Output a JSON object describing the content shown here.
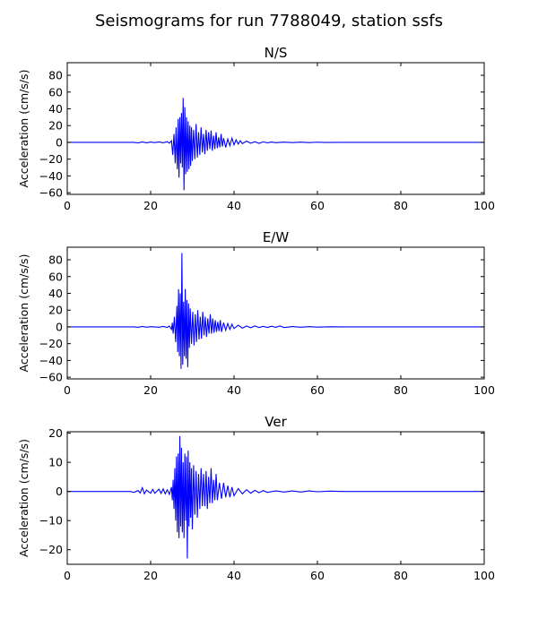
{
  "figure_title": "Seismograms for run 7788049, station ssfs",
  "chart_data": [
    {
      "type": "line",
      "title": "N/S",
      "xlabel": "",
      "ylabel": "Acceleration (cm/s/s)",
      "xlim": [
        0,
        100
      ],
      "ylim": [
        -62,
        95
      ],
      "xticks": [
        0,
        20,
        40,
        60,
        80,
        100
      ],
      "yticks": [
        -60,
        -40,
        -20,
        0,
        20,
        40,
        60,
        80
      ],
      "grid": false,
      "color": "#0000ff",
      "series": [
        {
          "values": [
            [
              0,
              0
            ],
            [
              16,
              0
            ],
            [
              17,
              -0.6
            ],
            [
              18,
              0.5
            ],
            [
              19,
              -0.5
            ],
            [
              20,
              0.4
            ],
            [
              21,
              -0.3
            ],
            [
              22,
              0.5
            ],
            [
              23,
              -0.5
            ],
            [
              24,
              0.8
            ],
            [
              24.5,
              -1
            ],
            [
              25,
              2
            ],
            [
              25.3,
              -15
            ],
            [
              25.6,
              10
            ],
            [
              25.9,
              -25
            ],
            [
              26.1,
              18
            ],
            [
              26.4,
              -32
            ],
            [
              26.6,
              28
            ],
            [
              26.8,
              -42
            ],
            [
              27,
              30
            ],
            [
              27.2,
              -25
            ],
            [
              27.4,
              35
            ],
            [
              27.6,
              -30
            ],
            [
              27.8,
              53
            ],
            [
              28,
              -57
            ],
            [
              28.2,
              42
            ],
            [
              28.4,
              -38
            ],
            [
              28.6,
              30
            ],
            [
              28.8,
              -35
            ],
            [
              29,
              25
            ],
            [
              29.2,
              -32
            ],
            [
              29.4,
              20
            ],
            [
              29.6,
              -28
            ],
            [
              29.8,
              18
            ],
            [
              30,
              -22
            ],
            [
              30.3,
              15
            ],
            [
              30.6,
              -20
            ],
            [
              30.9,
              22
            ],
            [
              31.2,
              -18
            ],
            [
              31.5,
              12
            ],
            [
              31.8,
              -15
            ],
            [
              32.1,
              18
            ],
            [
              32.4,
              -12
            ],
            [
              32.7,
              10
            ],
            [
              33,
              -14
            ],
            [
              33.3,
              15
            ],
            [
              33.6,
              -10
            ],
            [
              33.9,
              12
            ],
            [
              34.2,
              -8
            ],
            [
              34.5,
              14
            ],
            [
              34.8,
              -10
            ],
            [
              35.1,
              8
            ],
            [
              35.4,
              -8
            ],
            [
              35.7,
              12
            ],
            [
              36,
              -7
            ],
            [
              36.3,
              6
            ],
            [
              36.6,
              -6
            ],
            [
              36.9,
              10
            ],
            [
              37.2,
              -5
            ],
            [
              37.5,
              5
            ],
            [
              38,
              -6
            ],
            [
              38.5,
              4
            ],
            [
              39,
              -4
            ],
            [
              39.5,
              5
            ],
            [
              40,
              -3
            ],
            [
              40.5,
              3
            ],
            [
              41,
              -2
            ],
            [
              41.5,
              2
            ],
            [
              42,
              -1.5
            ],
            [
              43,
              1.5
            ],
            [
              44,
              -1
            ],
            [
              45,
              0.8
            ],
            [
              46,
              -1.2
            ],
            [
              47,
              0.6
            ],
            [
              48,
              -0.5
            ],
            [
              49,
              0.4
            ],
            [
              50,
              -0.4
            ],
            [
              52,
              0.3
            ],
            [
              54,
              -0.3
            ],
            [
              56,
              0.3
            ],
            [
              58,
              -0.2
            ],
            [
              60,
              0.2
            ],
            [
              62,
              -0.1
            ],
            [
              65,
              0
            ],
            [
              100,
              0
            ]
          ]
        }
      ]
    },
    {
      "type": "line",
      "title": "E/W",
      "xlabel": "",
      "ylabel": "Acceleration (cm/s/s)",
      "xlim": [
        0,
        100
      ],
      "ylim": [
        -62,
        95
      ],
      "xticks": [
        0,
        20,
        40,
        60,
        80,
        100
      ],
      "yticks": [
        -60,
        -40,
        -20,
        0,
        20,
        40,
        60,
        80
      ],
      "grid": false,
      "color": "#0000ff",
      "series": [
        {
          "values": [
            [
              0,
              0
            ],
            [
              16,
              0
            ],
            [
              17,
              -0.5
            ],
            [
              18,
              0.5
            ],
            [
              19,
              -0.4
            ],
            [
              20,
              0.3
            ],
            [
              22,
              -0.4
            ],
            [
              23,
              0.5
            ],
            [
              24,
              -0.6
            ],
            [
              24.5,
              1
            ],
            [
              25,
              -3
            ],
            [
              25.2,
              5
            ],
            [
              25.4,
              -8
            ],
            [
              25.7,
              12
            ],
            [
              26,
              -18
            ],
            [
              26.3,
              25
            ],
            [
              26.5,
              -30
            ],
            [
              26.7,
              45
            ],
            [
              26.9,
              -35
            ],
            [
              27.1,
              40
            ],
            [
              27.3,
              -50
            ],
            [
              27.5,
              88
            ],
            [
              27.7,
              -45
            ],
            [
              27.9,
              30
            ],
            [
              28.1,
              -35
            ],
            [
              28.3,
              45
            ],
            [
              28.5,
              -38
            ],
            [
              28.7,
              32
            ],
            [
              28.9,
              -48
            ],
            [
              29.1,
              28
            ],
            [
              29.3,
              -25
            ],
            [
              29.5,
              22
            ],
            [
              29.8,
              -20
            ],
            [
              30.1,
              18
            ],
            [
              30.4,
              -22
            ],
            [
              30.7,
              15
            ],
            [
              31,
              -18
            ],
            [
              31.3,
              20
            ],
            [
              31.6,
              -15
            ],
            [
              31.9,
              12
            ],
            [
              32.2,
              -14
            ],
            [
              32.5,
              18
            ],
            [
              32.8,
              -10
            ],
            [
              33.1,
              12
            ],
            [
              33.4,
              -12
            ],
            [
              33.7,
              10
            ],
            [
              34,
              -8
            ],
            [
              34.3,
              15
            ],
            [
              34.6,
              -8
            ],
            [
              34.9,
              10
            ],
            [
              35.2,
              -7
            ],
            [
              35.5,
              8
            ],
            [
              35.8,
              -6
            ],
            [
              36.1,
              6
            ],
            [
              36.4,
              -5
            ],
            [
              36.7,
              8
            ],
            [
              37,
              -6
            ],
            [
              37.5,
              5
            ],
            [
              38,
              -4
            ],
            [
              38.5,
              4
            ],
            [
              39,
              -3
            ],
            [
              39.5,
              3
            ],
            [
              40,
              -2
            ],
            [
              41,
              2
            ],
            [
              42,
              -1.5
            ],
            [
              43,
              1
            ],
            [
              44,
              -1
            ],
            [
              45,
              1.2
            ],
            [
              46,
              -0.8
            ],
            [
              47,
              0.7
            ],
            [
              48,
              -0.6
            ],
            [
              49,
              0.8
            ],
            [
              50,
              -0.5
            ],
            [
              51,
              1
            ],
            [
              52,
              -0.8
            ],
            [
              54,
              0.4
            ],
            [
              56,
              -0.4
            ],
            [
              58,
              0.3
            ],
            [
              60,
              -0.2
            ],
            [
              63,
              0.1
            ],
            [
              66,
              0
            ],
            [
              100,
              0
            ]
          ]
        }
      ]
    },
    {
      "type": "line",
      "title": "Ver",
      "xlabel": "",
      "ylabel": "Acceleration (cm/s/s)",
      "xlim": [
        0,
        100
      ],
      "ylim": [
        -25,
        20.5
      ],
      "xticks": [
        0,
        20,
        40,
        60,
        80,
        100
      ],
      "yticks": [
        -20,
        -10,
        0,
        10,
        20
      ],
      "grid": false,
      "color": "#0000ff",
      "series": [
        {
          "values": [
            [
              0,
              0
            ],
            [
              15,
              0
            ],
            [
              16,
              -0.3
            ],
            [
              17,
              0.3
            ],
            [
              17.5,
              -0.5
            ],
            [
              18,
              1.3
            ],
            [
              18.5,
              -0.8
            ],
            [
              19,
              0.5
            ],
            [
              20,
              -0.6
            ],
            [
              20.5,
              0.7
            ],
            [
              21,
              -0.6
            ],
            [
              22,
              0.8
            ],
            [
              22.5,
              -0.7
            ],
            [
              23,
              0.9
            ],
            [
              23.5,
              -0.8
            ],
            [
              24,
              0.6
            ],
            [
              24.5,
              -1
            ],
            [
              25,
              1.5
            ],
            [
              25.2,
              -3
            ],
            [
              25.4,
              4
            ],
            [
              25.6,
              -6
            ],
            [
              25.8,
              8
            ],
            [
              26,
              -10
            ],
            [
              26.2,
              12
            ],
            [
              26.4,
              -14
            ],
            [
              26.6,
              13
            ],
            [
              26.8,
              -16
            ],
            [
              27,
              19
            ],
            [
              27.2,
              -12
            ],
            [
              27.4,
              15
            ],
            [
              27.6,
              -14
            ],
            [
              27.8,
              10
            ],
            [
              28,
              -16
            ],
            [
              28.2,
              13
            ],
            [
              28.4,
              -10
            ],
            [
              28.6,
              12
            ],
            [
              28.8,
              -23
            ],
            [
              29,
              14
            ],
            [
              29.2,
              -12
            ],
            [
              29.4,
              10
            ],
            [
              29.6,
              -9
            ],
            [
              29.8,
              8
            ],
            [
              30,
              -13
            ],
            [
              30.3,
              9
            ],
            [
              30.6,
              -8
            ],
            [
              30.9,
              7
            ],
            [
              31.2,
              -9
            ],
            [
              31.5,
              6
            ],
            [
              31.8,
              -6
            ],
            [
              32.1,
              8
            ],
            [
              32.4,
              -5
            ],
            [
              32.7,
              6
            ],
            [
              33,
              -5
            ],
            [
              33.3,
              7
            ],
            [
              33.6,
              -6
            ],
            [
              33.9,
              5
            ],
            [
              34.2,
              -4
            ],
            [
              34.5,
              8
            ],
            [
              34.8,
              -4
            ],
            [
              35.1,
              4
            ],
            [
              35.4,
              -3
            ],
            [
              35.7,
              6
            ],
            [
              36,
              -3
            ],
            [
              36.5,
              3
            ],
            [
              37,
              -2.5
            ],
            [
              37.5,
              3
            ],
            [
              38,
              -2
            ],
            [
              38.5,
              2
            ],
            [
              39,
              -2
            ],
            [
              39.5,
              1.5
            ],
            [
              40,
              -1.5
            ],
            [
              41,
              1
            ],
            [
              42,
              -0.8
            ],
            [
              43,
              0.6
            ],
            [
              44,
              -0.6
            ],
            [
              45,
              0.4
            ],
            [
              46,
              -0.4
            ],
            [
              47,
              0.3
            ],
            [
              48,
              -0.3
            ],
            [
              50,
              0.2
            ],
            [
              52,
              -0.2
            ],
            [
              54,
              0.2
            ],
            [
              56,
              -0.2
            ],
            [
              58,
              0.2
            ],
            [
              60,
              -0.1
            ],
            [
              63,
              0.1
            ],
            [
              66,
              0
            ],
            [
              100,
              0
            ]
          ]
        }
      ]
    }
  ]
}
